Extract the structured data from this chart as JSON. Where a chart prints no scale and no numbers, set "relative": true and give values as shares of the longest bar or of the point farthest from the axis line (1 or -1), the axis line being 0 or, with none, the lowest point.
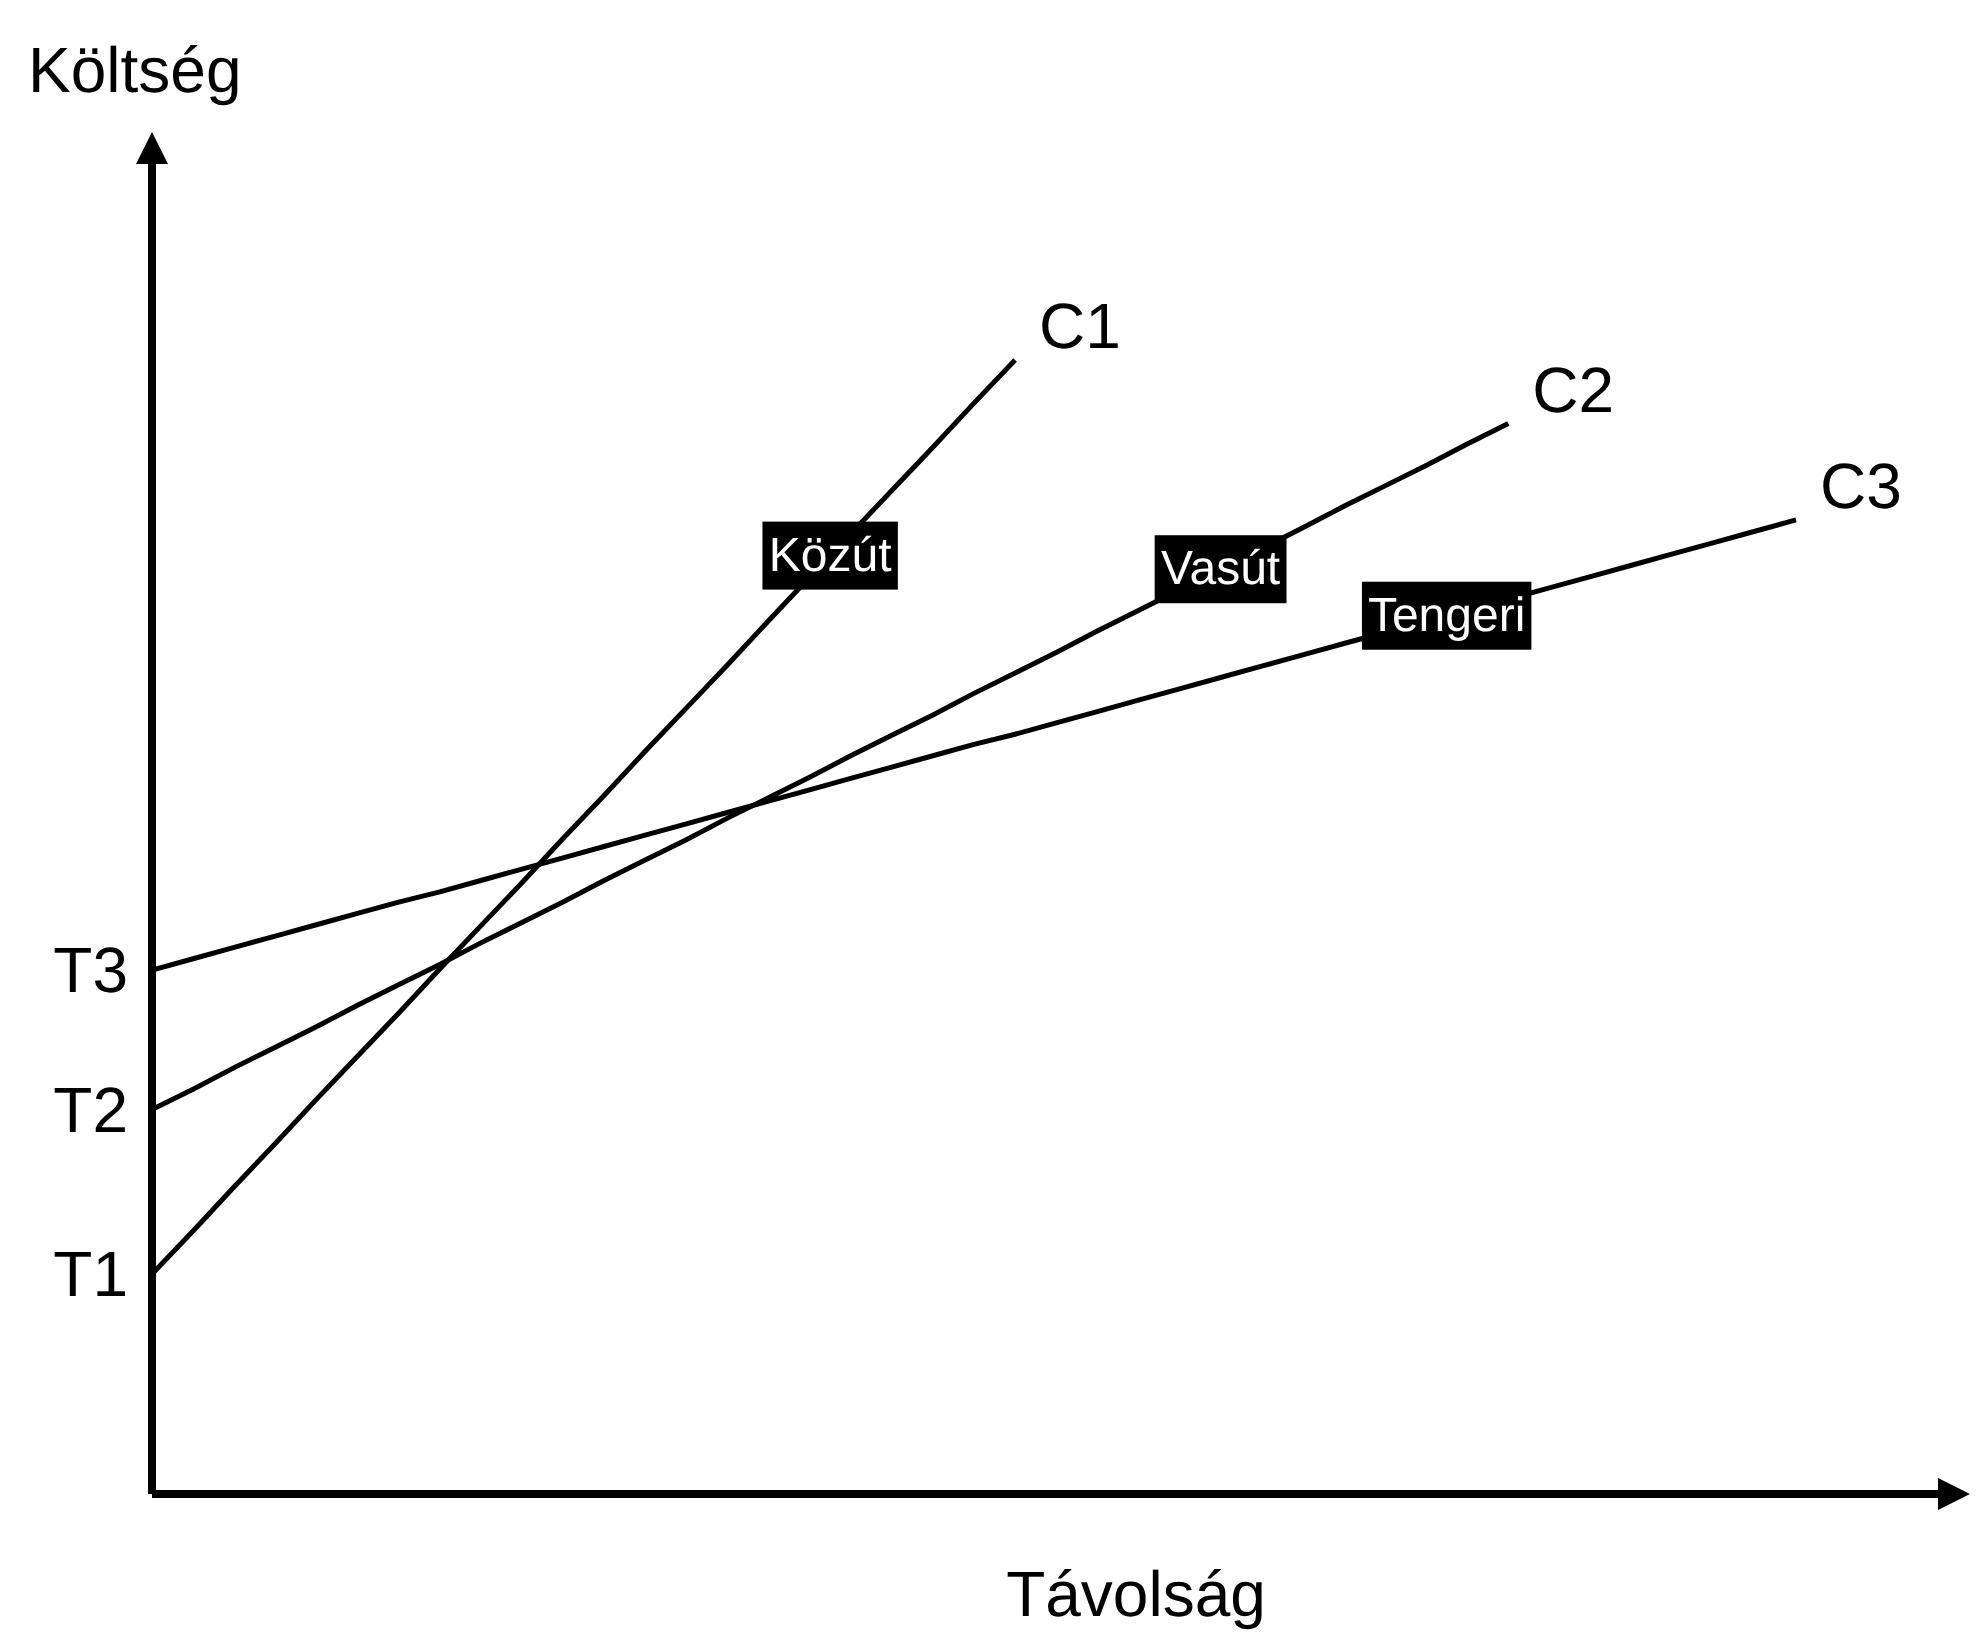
{
  "chart_data": {
    "type": "line",
    "relative": true,
    "xlabel": "Távolság",
    "ylabel": "Költség",
    "legend": false,
    "marker": "none",
    "line_style": "solid",
    "categories": [
      null,
      null,
      null,
      null,
      null,
      null,
      null,
      null,
      null,
      null,
      null,
      null,
      null,
      null,
      null,
      null,
      null,
      null,
      null,
      null,
      null,
      null,
      null,
      null,
      null,
      null,
      null,
      null,
      null,
      null,
      null,
      null,
      null,
      null,
      null,
      null,
      null,
      null,
      null,
      null,
      null
    ],
    "series": [
      {
        "name": "C1",
        "color": "#000000",
        "values": [
          0.194,
          0.232,
          0.271,
          0.309,
          0.348,
          0.386,
          0.424,
          0.463,
          0.501,
          0.539,
          0.578,
          0.616,
          0.655,
          0.693,
          0.731,
          0.77,
          null,
          null,
          0.885,
          0.923,
          0.962,
          1,
          null,
          null,
          null,
          null,
          null,
          null,
          null,
          null,
          null,
          null,
          null,
          null,
          null,
          null,
          null,
          null,
          null,
          null,
          null
        ]
      },
      {
        "name": "C2",
        "color": "#000000",
        "values": [
          0.339,
          0.357,
          0.376,
          0.394,
          0.412,
          0.431,
          0.449,
          0.467,
          0.486,
          0.504,
          0.522,
          0.541,
          0.559,
          0.577,
          0.596,
          0.614,
          0.632,
          0.651,
          0.669,
          0.687,
          0.706,
          0.724,
          0.742,
          0.761,
          0.779,
          null,
          null,
          null,
          0.852,
          0.871,
          0.889,
          0.907,
          0.926,
          0.944,
          null,
          null,
          null,
          null,
          null,
          null,
          null
        ]
      },
      {
        "name": "C3",
        "color": "#000000",
        "values": [
          0.462,
          0.472,
          0.482,
          0.492,
          0.502,
          0.512,
          0.522,
          0.531,
          0.541,
          0.551,
          0.561,
          0.571,
          0.581,
          0.591,
          0.601,
          0.611,
          0.621,
          0.631,
          0.641,
          0.651,
          0.661,
          0.67,
          0.68,
          0.69,
          0.7,
          0.71,
          0.72,
          0.73,
          0.74,
          0.75,
          null,
          null,
          null,
          null,
          0.799,
          0.809,
          0.819,
          0.829,
          0.839,
          0.849,
          0.859
        ]
      }
    ],
    "annotations": [
      "T1",
      "T2",
      "T3",
      "Közút",
      "Vasút",
      "Tengeri"
    ]
  }
}
